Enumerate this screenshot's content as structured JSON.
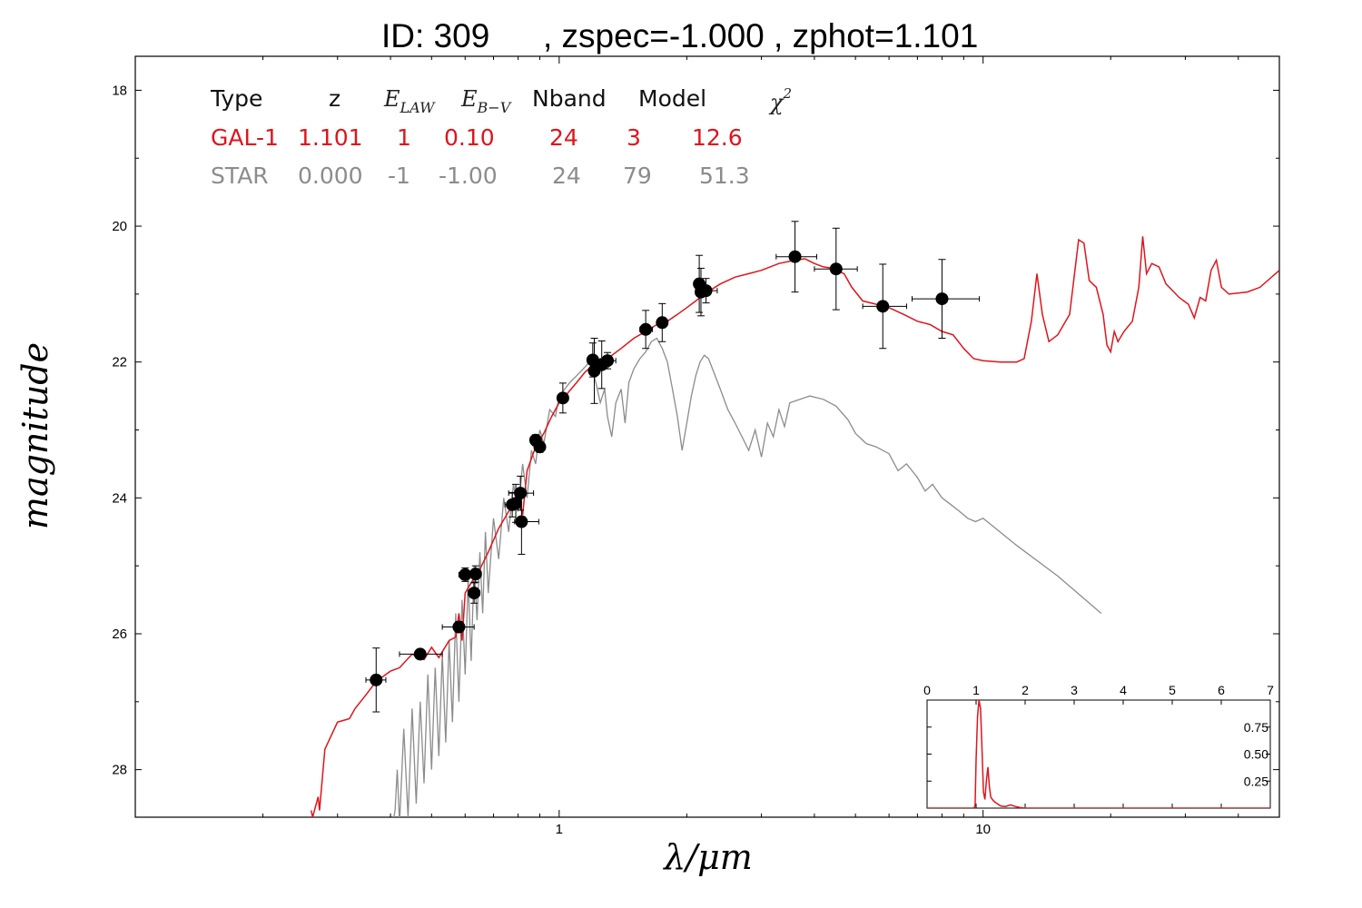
{
  "title": {
    "id_label": "ID:  309",
    "rest": ", zspec=-1.000 , zphot=1.101"
  },
  "colors": {
    "galaxy": "#e0141c",
    "star": "#8c8c8c",
    "data": "#000000",
    "table_header": "#111111"
  },
  "table": {
    "headers": [
      "Type",
      "z",
      "E_LAW",
      "E_B-V",
      "Nband",
      "Model",
      "chi^2"
    ],
    "header_display": {
      "type": "Type",
      "z": "z",
      "elaw_main": "E",
      "elaw_sub": "LAW",
      "ebv_main": "E",
      "ebv_sub": "B−V",
      "nband": "Nband",
      "model": "Model",
      "chi_main": "χ",
      "chi_sup": "2"
    },
    "rows": [
      {
        "type": "GAL-1",
        "z": "1.101",
        "elaw": "1",
        "ebv": "0.10",
        "nband": "24",
        "model": "3",
        "chi2": "12.6"
      },
      {
        "type": "STAR",
        "z": "0.000",
        "elaw": "-1",
        "ebv": "-1.00",
        "nband": "24",
        "model": "79",
        "chi2": "51.3"
      }
    ]
  },
  "chart_data": [
    {
      "type": "scatter",
      "xlabel": "λ/μm",
      "ylabel": "magnitude",
      "xscale": "log",
      "xlim": [
        0.1,
        50
      ],
      "ylim": [
        28.7,
        17.5
      ],
      "y_inverted": true,
      "x_ticks": [
        1,
        10
      ],
      "x_tick_labels": [
        "1",
        "10"
      ],
      "y_ticks": [
        18,
        20,
        22,
        24,
        26,
        28
      ],
      "y_tick_labels": [
        "18",
        "20",
        "22",
        "24",
        "26",
        "28"
      ],
      "grid": false,
      "photometry": [
        {
          "x": 0.37,
          "y": 26.68,
          "xerr_lo": 0.02,
          "xerr_hi": 0.02,
          "yerr": 0.47
        },
        {
          "x": 0.47,
          "y": 26.3,
          "xerr_lo": 0.05,
          "xerr_hi": 0.06,
          "yerr": 0.05
        },
        {
          "x": 0.58,
          "y": 25.9,
          "xerr_lo": 0.05,
          "xerr_hi": 0.05,
          "yerr": 0.08
        },
        {
          "x": 0.6,
          "y": 25.13,
          "xerr_lo": 0.02,
          "xerr_hi": 0.02,
          "yerr": 0.1
        },
        {
          "x": 0.635,
          "y": 25.12,
          "xerr_lo": 0.02,
          "xerr_hi": 0.02,
          "yerr": 0.12
        },
        {
          "x": 0.63,
          "y": 25.4,
          "xerr_lo": 0.02,
          "xerr_hi": 0.02,
          "yerr": 0.15
        },
        {
          "x": 0.775,
          "y": 24.1,
          "xerr_lo": 0.03,
          "xerr_hi": 0.03,
          "yerr": 0.18
        },
        {
          "x": 0.79,
          "y": 24.08,
          "xerr_lo": 0.02,
          "xerr_hi": 0.02,
          "yerr": 0.28
        },
        {
          "x": 0.81,
          "y": 23.93,
          "xerr_lo": 0.05,
          "xerr_hi": 0.06,
          "yerr": 0.25
        },
        {
          "x": 0.815,
          "y": 24.35,
          "xerr_lo": 0.03,
          "xerr_hi": 0.08,
          "yerr": 0.48
        },
        {
          "x": 0.88,
          "y": 23.15,
          "xerr_lo": 0.02,
          "xerr_hi": 0.02,
          "yerr": 0.08
        },
        {
          "x": 0.9,
          "y": 23.25,
          "xerr_lo": 0.02,
          "xerr_hi": 0.02,
          "yerr": 0.08
        },
        {
          "x": 1.02,
          "y": 22.53,
          "xerr_lo": 0.02,
          "xerr_hi": 0.03,
          "yerr": 0.22
        },
        {
          "x": 1.2,
          "y": 21.97,
          "xerr_lo": 0.02,
          "xerr_hi": 0.02,
          "yerr": 0.25
        },
        {
          "x": 1.21,
          "y": 22.13,
          "xerr_lo": 0.02,
          "xerr_hi": 0.02,
          "yerr": 0.48
        },
        {
          "x": 1.26,
          "y": 22.04,
          "xerr_lo": 0.05,
          "xerr_hi": 0.05,
          "yerr": 0.35
        },
        {
          "x": 1.3,
          "y": 21.98,
          "xerr_lo": 0.05,
          "xerr_hi": 0.06,
          "yerr": 0.12
        },
        {
          "x": 1.6,
          "y": 21.52,
          "xerr_lo": 0.05,
          "xerr_hi": 0.06,
          "yerr": 0.28
        },
        {
          "x": 1.75,
          "y": 21.42,
          "xerr_lo": 0.03,
          "xerr_hi": 0.03,
          "yerr": 0.28
        },
        {
          "x": 2.14,
          "y": 20.85,
          "xerr_lo": 0.05,
          "xerr_hi": 0.05,
          "yerr": 0.42
        },
        {
          "x": 2.16,
          "y": 20.97,
          "xerr_lo": 0.05,
          "xerr_hi": 0.05,
          "yerr": 0.35
        },
        {
          "x": 2.22,
          "y": 20.95,
          "xerr_lo": 0.12,
          "xerr_hi": 0.14,
          "yerr": 0.18
        },
        {
          "x": 3.6,
          "y": 20.45,
          "xerr_lo": 0.35,
          "xerr_hi": 0.45,
          "yerr": 0.52
        },
        {
          "x": 4.5,
          "y": 20.63,
          "xerr_lo": 0.5,
          "xerr_hi": 0.55,
          "yerr": 0.6
        },
        {
          "x": 5.8,
          "y": 21.18,
          "xerr_lo": 0.6,
          "xerr_hi": 0.8,
          "yerr": 0.62
        },
        {
          "x": 8.0,
          "y": 21.07,
          "xerr_lo": 1.2,
          "xerr_hi": 1.8,
          "yerr": 0.58
        }
      ],
      "galaxy_model": [
        [
          0.26,
          28.6
        ],
        [
          0.262,
          28.7
        ],
        [
          0.27,
          28.4
        ],
        [
          0.272,
          28.6
        ],
        [
          0.28,
          27.7
        ],
        [
          0.3,
          27.3
        ],
        [
          0.32,
          27.25
        ],
        [
          0.33,
          27.1
        ],
        [
          0.35,
          26.9
        ],
        [
          0.37,
          26.7
        ],
        [
          0.4,
          26.55
        ],
        [
          0.42,
          26.5
        ],
        [
          0.45,
          26.3
        ],
        [
          0.48,
          26.38
        ],
        [
          0.5,
          26.2
        ],
        [
          0.52,
          26.35
        ],
        [
          0.55,
          26.1
        ],
        [
          0.57,
          26.05
        ],
        [
          0.58,
          25.7
        ],
        [
          0.59,
          26.1
        ],
        [
          0.6,
          25.4
        ],
        [
          0.62,
          25.25
        ],
        [
          0.65,
          25.05
        ],
        [
          0.68,
          24.8
        ],
        [
          0.72,
          24.45
        ],
        [
          0.76,
          24.2
        ],
        [
          0.8,
          24.0
        ],
        [
          0.82,
          24.25
        ],
        [
          0.84,
          23.6
        ],
        [
          0.88,
          23.25
        ],
        [
          0.92,
          23.05
        ],
        [
          0.96,
          22.8
        ],
        [
          1.0,
          22.6
        ],
        [
          1.05,
          22.45
        ],
        [
          1.1,
          22.3
        ],
        [
          1.15,
          22.15
        ],
        [
          1.2,
          22.05
        ],
        [
          1.3,
          21.95
        ],
        [
          1.4,
          21.8
        ],
        [
          1.5,
          21.65
        ],
        [
          1.6,
          21.55
        ],
        [
          1.7,
          21.45
        ],
        [
          1.8,
          21.4
        ],
        [
          1.9,
          21.3
        ],
        [
          2.0,
          21.2
        ],
        [
          2.1,
          21.1
        ],
        [
          2.2,
          21.0
        ],
        [
          2.4,
          20.85
        ],
        [
          2.6,
          20.75
        ],
        [
          2.8,
          20.7
        ],
        [
          3.0,
          20.65
        ],
        [
          3.3,
          20.55
        ],
        [
          3.6,
          20.5
        ],
        [
          3.8,
          20.48
        ],
        [
          4.0,
          20.55
        ],
        [
          4.2,
          20.6
        ],
        [
          4.4,
          20.62
        ],
        [
          4.7,
          20.7
        ],
        [
          4.9,
          20.9
        ],
        [
          5.2,
          21.1
        ],
        [
          5.6,
          21.15
        ],
        [
          6.0,
          21.2
        ],
        [
          6.5,
          21.3
        ],
        [
          7.0,
          21.4
        ],
        [
          7.5,
          21.45
        ],
        [
          8.0,
          21.55
        ],
        [
          8.5,
          21.6
        ],
        [
          9.0,
          21.8
        ],
        [
          9.5,
          21.95
        ],
        [
          10.0,
          21.98
        ],
        [
          11.0,
          22.0
        ],
        [
          12.0,
          22.0
        ],
        [
          12.5,
          21.95
        ],
        [
          13.0,
          21.4
        ],
        [
          13.4,
          20.7
        ],
        [
          13.8,
          21.3
        ],
        [
          14.3,
          21.7
        ],
        [
          15.0,
          21.6
        ],
        [
          16.0,
          21.3
        ],
        [
          16.8,
          20.2
        ],
        [
          17.3,
          20.25
        ],
        [
          17.8,
          20.8
        ],
        [
          18.5,
          20.9
        ],
        [
          19.2,
          21.3
        ],
        [
          19.6,
          21.75
        ],
        [
          20.0,
          21.85
        ],
        [
          20.4,
          21.55
        ],
        [
          20.8,
          21.7
        ],
        [
          21.5,
          21.55
        ],
        [
          22.5,
          21.4
        ],
        [
          23.3,
          20.9
        ],
        [
          23.8,
          20.15
        ],
        [
          24.3,
          20.7
        ],
        [
          25.0,
          20.55
        ],
        [
          26.0,
          20.6
        ],
        [
          27.0,
          20.85
        ],
        [
          28.0,
          20.95
        ],
        [
          29.0,
          21.05
        ],
        [
          30.5,
          21.15
        ],
        [
          31.5,
          21.35
        ],
        [
          32.5,
          21.05
        ],
        [
          33.5,
          21.1
        ],
        [
          34.5,
          20.65
        ],
        [
          35.5,
          20.5
        ],
        [
          36.5,
          20.9
        ],
        [
          38.0,
          21.0
        ],
        [
          42.0,
          20.97
        ],
        [
          45.0,
          20.9
        ],
        [
          50.0,
          20.65
        ]
      ],
      "star_model": [
        [
          0.4,
          29.0
        ],
        [
          0.41,
          28.6
        ],
        [
          0.415,
          28.0
        ],
        [
          0.42,
          28.8
        ],
        [
          0.43,
          27.4
        ],
        [
          0.44,
          28.7
        ],
        [
          0.45,
          27.1
        ],
        [
          0.46,
          28.5
        ],
        [
          0.47,
          27.0
        ],
        [
          0.48,
          28.2
        ],
        [
          0.49,
          26.6
        ],
        [
          0.5,
          28.0
        ],
        [
          0.51,
          26.5
        ],
        [
          0.52,
          27.8
        ],
        [
          0.53,
          26.3
        ],
        [
          0.54,
          27.6
        ],
        [
          0.55,
          26.1
        ],
        [
          0.56,
          27.3
        ],
        [
          0.57,
          25.7
        ],
        [
          0.58,
          27.0
        ],
        [
          0.59,
          25.5
        ],
        [
          0.6,
          26.6
        ],
        [
          0.61,
          25.2
        ],
        [
          0.62,
          26.4
        ],
        [
          0.63,
          25.0
        ],
        [
          0.64,
          25.8
        ],
        [
          0.65,
          24.8
        ],
        [
          0.66,
          25.7
        ],
        [
          0.67,
          24.5
        ],
        [
          0.68,
          25.4
        ],
        [
          0.7,
          24.3
        ],
        [
          0.72,
          24.9
        ],
        [
          0.74,
          24.0
        ],
        [
          0.76,
          24.5
        ],
        [
          0.78,
          23.8
        ],
        [
          0.8,
          24.2
        ],
        [
          0.82,
          23.5
        ],
        [
          0.84,
          24.0
        ],
        [
          0.86,
          23.3
        ],
        [
          0.88,
          23.5
        ],
        [
          0.9,
          23.0
        ],
        [
          0.92,
          23.2
        ],
        [
          0.95,
          22.7
        ],
        [
          0.98,
          22.8
        ],
        [
          1.0,
          22.5
        ],
        [
          1.03,
          22.4
        ],
        [
          1.06,
          22.3
        ],
        [
          1.1,
          22.2
        ],
        [
          1.14,
          22.1
        ],
        [
          1.18,
          22.0
        ],
        [
          1.22,
          22.3
        ],
        [
          1.25,
          22.6
        ],
        [
          1.28,
          22.4
        ],
        [
          1.3,
          22.8
        ],
        [
          1.33,
          23.1
        ],
        [
          1.36,
          22.6
        ],
        [
          1.4,
          22.4
        ],
        [
          1.43,
          22.9
        ],
        [
          1.46,
          22.3
        ],
        [
          1.5,
          22.1
        ],
        [
          1.55,
          21.95
        ],
        [
          1.6,
          21.85
        ],
        [
          1.65,
          21.7
        ],
        [
          1.7,
          21.65
        ],
        [
          1.75,
          21.8
        ],
        [
          1.8,
          22.0
        ],
        [
          1.85,
          22.4
        ],
        [
          1.9,
          22.8
        ],
        [
          1.95,
          23.3
        ],
        [
          2.0,
          22.9
        ],
        [
          2.05,
          22.5
        ],
        [
          2.1,
          22.2
        ],
        [
          2.15,
          22.0
        ],
        [
          2.2,
          21.9
        ],
        [
          2.25,
          21.95
        ],
        [
          2.3,
          22.1
        ],
        [
          2.4,
          22.4
        ],
        [
          2.5,
          22.7
        ],
        [
          2.6,
          22.9
        ],
        [
          2.7,
          23.1
        ],
        [
          2.8,
          23.3
        ],
        [
          2.9,
          23.0
        ],
        [
          3.0,
          23.4
        ],
        [
          3.1,
          22.9
        ],
        [
          3.2,
          23.1
        ],
        [
          3.3,
          22.7
        ],
        [
          3.4,
          22.95
        ],
        [
          3.5,
          22.6
        ],
        [
          3.7,
          22.55
        ],
        [
          3.9,
          22.5
        ],
        [
          4.2,
          22.55
        ],
        [
          4.5,
          22.65
        ],
        [
          4.8,
          22.85
        ],
        [
          5.0,
          23.05
        ],
        [
          5.3,
          23.2
        ],
        [
          5.6,
          23.25
        ],
        [
          6.0,
          23.35
        ],
        [
          6.3,
          23.6
        ],
        [
          6.6,
          23.5
        ],
        [
          7.0,
          23.7
        ],
        [
          7.3,
          23.9
        ],
        [
          7.6,
          23.8
        ],
        [
          8.0,
          24.0
        ],
        [
          8.4,
          24.1
        ],
        [
          8.8,
          24.2
        ],
        [
          9.2,
          24.3
        ],
        [
          9.6,
          24.35
        ],
        [
          10.0,
          24.3
        ],
        [
          12.0,
          24.7
        ],
        [
          15.0,
          25.15
        ],
        [
          19.0,
          25.7
        ]
      ]
    },
    {
      "type": "line",
      "role": "inset",
      "xlim": [
        0,
        7
      ],
      "ylim": [
        0,
        1.0
      ],
      "x_ticks": [
        0,
        1,
        2,
        3,
        4,
        5,
        6,
        7
      ],
      "x_tick_labels": [
        "0",
        "1",
        "2",
        "3",
        "4",
        "5",
        "6",
        "7"
      ],
      "y_ticks": [
        0.25,
        0.5,
        0.75
      ],
      "y_tick_labels": [
        "0.25",
        "0.50",
        "0.75"
      ],
      "pdz": [
        [
          0,
          0.0
        ],
        [
          0.95,
          0.0
        ],
        [
          0.98,
          0.02
        ],
        [
          1.0,
          0.45
        ],
        [
          1.03,
          0.85
        ],
        [
          1.06,
          1.0
        ],
        [
          1.09,
          0.92
        ],
        [
          1.12,
          0.55
        ],
        [
          1.15,
          0.15
        ],
        [
          1.18,
          0.08
        ],
        [
          1.21,
          0.25
        ],
        [
          1.24,
          0.38
        ],
        [
          1.27,
          0.2
        ],
        [
          1.3,
          0.1
        ],
        [
          1.35,
          0.07
        ],
        [
          1.4,
          0.05
        ],
        [
          1.5,
          0.02
        ],
        [
          1.6,
          0.015
        ],
        [
          1.7,
          0.03
        ],
        [
          1.8,
          0.015
        ],
        [
          1.9,
          0.005
        ],
        [
          2.0,
          0.0
        ],
        [
          7.0,
          0.0
        ]
      ]
    }
  ]
}
